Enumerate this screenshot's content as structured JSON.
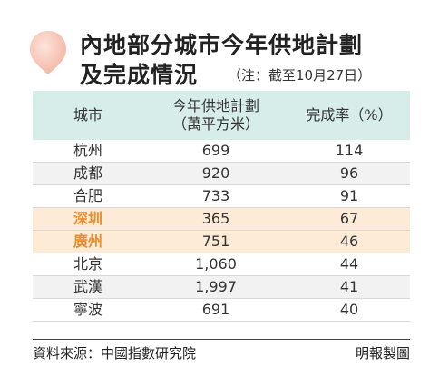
{
  "header": {
    "title_line1": "內地部分城市今年供地計劃",
    "title_line2": "及完成情況",
    "note": "（注：截至10月27日）"
  },
  "table": {
    "headers": {
      "city": "城市",
      "plan_line1": "今年供地計劃",
      "plan_line2": "（萬平方米）",
      "rate": "完成率（%）"
    },
    "rows": [
      {
        "city": "杭州",
        "plan": "699",
        "rate": "114",
        "highlight": false
      },
      {
        "city": "成都",
        "plan": "920",
        "rate": "96",
        "highlight": false
      },
      {
        "city": "合肥",
        "plan": "733",
        "rate": "91",
        "highlight": false
      },
      {
        "city": "深圳",
        "plan": "365",
        "rate": "67",
        "highlight": true
      },
      {
        "city": "廣州",
        "plan": "751",
        "rate": "46",
        "highlight": true
      },
      {
        "city": "北京",
        "plan": "1,060",
        "rate": "44",
        "highlight": false
      },
      {
        "city": "武漢",
        "plan": "1,997",
        "rate": "41",
        "highlight": false
      },
      {
        "city": "寧波",
        "plan": "691",
        "rate": "40",
        "highlight": false
      }
    ]
  },
  "footer": {
    "source": "資料來源：中國指數研究院",
    "credit": "明報製圖"
  },
  "colors": {
    "header_bg": "#d6ede9",
    "highlight_bg": "#fdebd8",
    "highlight_text": "#f08c28",
    "pin": "#f3b7a6"
  },
  "chart_data": {
    "type": "table",
    "title": "內地部分城市今年供地計劃及完成情況",
    "columns": [
      "城市",
      "今年供地計劃（萬平方米）",
      "完成率（%）"
    ],
    "rows": [
      [
        "杭州",
        699,
        114
      ],
      [
        "成都",
        920,
        96
      ],
      [
        "合肥",
        733,
        91
      ],
      [
        "深圳",
        365,
        67
      ],
      [
        "廣州",
        751,
        46
      ],
      [
        "北京",
        1060,
        44
      ],
      [
        "武漢",
        1997,
        41
      ],
      [
        "寧波",
        691,
        40
      ]
    ]
  }
}
